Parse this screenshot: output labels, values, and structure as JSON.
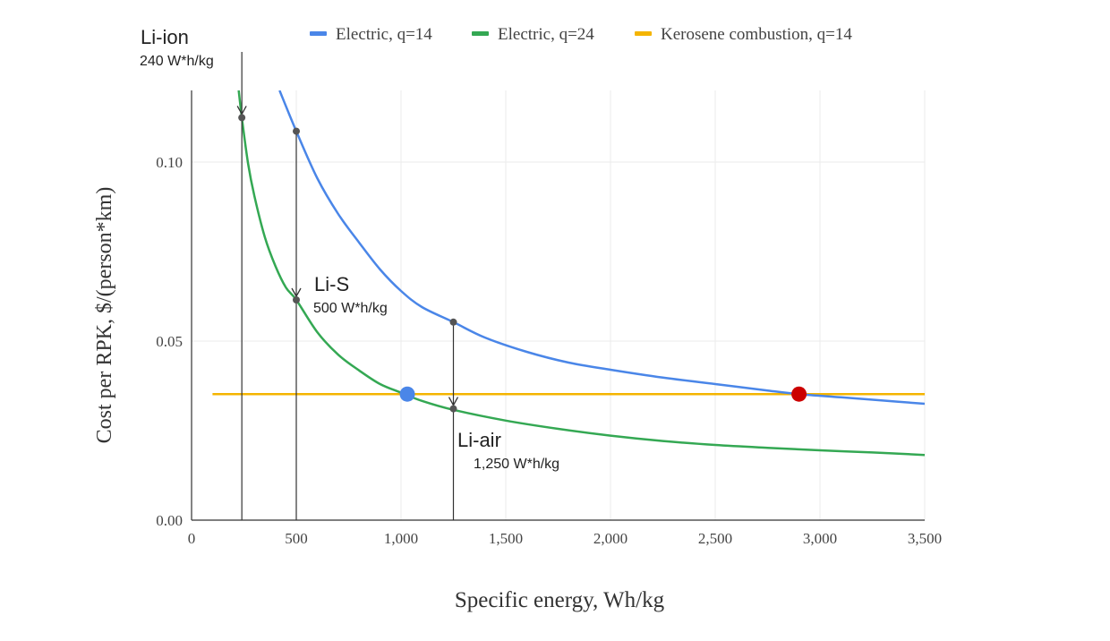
{
  "chart_data": {
    "type": "line",
    "title": "",
    "xlabel": "Specific energy, Wh/kg",
    "ylabel": "Cost per RPK, $/(person*km)",
    "xlim": [
      0,
      3500
    ],
    "ylim": [
      0,
      0.12
    ],
    "x_ticks": [
      {
        "value": 0,
        "label": "0"
      },
      {
        "value": 500,
        "label": "500"
      },
      {
        "value": 1000,
        "label": "1,000"
      },
      {
        "value": 1500,
        "label": "1,500"
      },
      {
        "value": 2000,
        "label": "2,000"
      },
      {
        "value": 2500,
        "label": "2,500"
      },
      {
        "value": 3000,
        "label": "3,000"
      },
      {
        "value": 3500,
        "label": "3,500"
      }
    ],
    "y_ticks": [
      {
        "value": 0,
        "label": "0.00"
      },
      {
        "value": 0.05,
        "label": "0.05"
      },
      {
        "value": 0.1,
        "label": "0.10"
      }
    ],
    "grid": true,
    "legend_position": "top",
    "series": [
      {
        "name": "Electric, q=14",
        "color": "#4a86e8",
        "x": [
          420,
          500,
          600,
          700,
          800,
          900,
          1000,
          1100,
          1250,
          1400,
          1600,
          1800,
          2000,
          2250,
          2500,
          2750,
          2900,
          3100,
          3300,
          3500
        ],
        "y": [
          0.12,
          0.1086,
          0.0955,
          0.0855,
          0.0775,
          0.07,
          0.064,
          0.0595,
          0.0553,
          0.051,
          0.047,
          0.044,
          0.042,
          0.0398,
          0.038,
          0.0362,
          0.0352,
          0.0343,
          0.0334,
          0.0325
        ]
      },
      {
        "name": "Electric, q=24",
        "color": "#34a853",
        "x": [
          225,
          240,
          270,
          300,
          350,
          400,
          450,
          500,
          600,
          700,
          800,
          900,
          1000,
          1100,
          1250,
          1500,
          1750,
          2000,
          2250,
          2500,
          2750,
          3000,
          3250,
          3500
        ],
        "y": [
          0.12,
          0.1124,
          0.0995,
          0.0905,
          0.079,
          0.071,
          0.065,
          0.0615,
          0.0525,
          0.0462,
          0.0418,
          0.038,
          0.0356,
          0.0333,
          0.0308,
          0.0278,
          0.0255,
          0.0236,
          0.0221,
          0.021,
          0.0202,
          0.0195,
          0.0189,
          0.0182
        ]
      },
      {
        "name": "Kerosene combustion, q=14",
        "color": "#f4b400",
        "x": [
          100,
          3500
        ],
        "y": [
          0.0352,
          0.0352
        ]
      }
    ],
    "annotations": [
      {
        "name": "li-ion",
        "title": "Li-ion",
        "subtitle": "240 W*h/kg",
        "x": 240,
        "y": 0.1124
      },
      {
        "name": "li-s",
        "title": "Li-S",
        "subtitle": "500 W*h/kg",
        "x": 500,
        "y_from": 0.1086,
        "y": 0.0615
      },
      {
        "name": "li-air",
        "title": "Li-air",
        "subtitle": "1,250 W*h/kg",
        "x": 1250,
        "y_from": 0.0553,
        "y": 0.0311
      }
    ],
    "intersections": [
      {
        "name": "blue-marker",
        "x": 1030,
        "y": 0.0352,
        "color": "#4a86e8"
      },
      {
        "name": "red-marker",
        "x": 2900,
        "y": 0.0352,
        "color": "#cc0000"
      }
    ]
  }
}
